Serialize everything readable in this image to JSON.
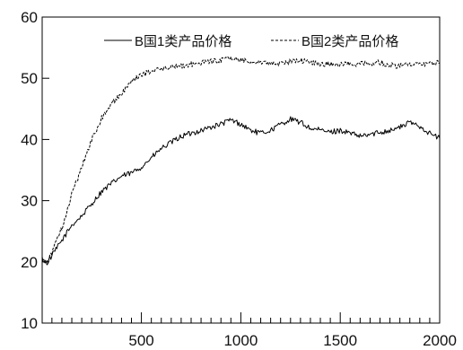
{
  "chart_data": {
    "type": "line",
    "title": "",
    "xlabel": "",
    "ylabel": "",
    "xlim": [
      1,
      2000
    ],
    "ylim": [
      10,
      60
    ],
    "x_ticks": [
      500,
      1000,
      1500,
      2000
    ],
    "x_tick_labels": [
      "500",
      "1000",
      "1500",
      "2000"
    ],
    "y_ticks": [
      10,
      20,
      30,
      40,
      50,
      60
    ],
    "y_tick_labels": [
      "10",
      "20",
      "30",
      "40",
      "50",
      "60"
    ],
    "x_minor_tick_step": 50,
    "grid": false,
    "legend_position": "top-right",
    "series": [
      {
        "name": "B国1类产品价格",
        "line_style": "solid",
        "color": "#000000",
        "x": [
          1,
          25,
          50,
          100,
          150,
          200,
          250,
          300,
          350,
          400,
          450,
          500,
          550,
          600,
          650,
          700,
          750,
          800,
          850,
          900,
          950,
          1000,
          1050,
          1100,
          1150,
          1200,
          1250,
          1300,
          1350,
          1400,
          1450,
          1500,
          1550,
          1600,
          1650,
          1700,
          1750,
          1800,
          1850,
          1900,
          1950,
          2000
        ],
        "y": [
          20.5,
          19.8,
          21.0,
          23.5,
          26.0,
          27.5,
          29.5,
          31.5,
          32.8,
          34.0,
          34.5,
          35.5,
          37.0,
          38.5,
          39.5,
          40.5,
          41.0,
          41.5,
          42.0,
          42.5,
          43.2,
          42.5,
          41.5,
          41.0,
          41.5,
          42.5,
          43.3,
          42.8,
          41.8,
          41.5,
          41.2,
          41.5,
          41.0,
          40.5,
          40.8,
          41.2,
          41.5,
          42.0,
          42.8,
          42.2,
          41.0,
          40.2
        ]
      },
      {
        "name": "B国2类产品价格",
        "line_style": "dashed",
        "color": "#000000",
        "x": [
          1,
          25,
          50,
          100,
          150,
          200,
          250,
          300,
          350,
          400,
          450,
          500,
          550,
          600,
          650,
          700,
          750,
          800,
          850,
          900,
          950,
          1000,
          1050,
          1100,
          1150,
          1200,
          1250,
          1300,
          1350,
          1400,
          1450,
          1500,
          1550,
          1600,
          1650,
          1700,
          1750,
          1800,
          1850,
          1900,
          1950,
          2000
        ],
        "y": [
          20.5,
          20.0,
          21.5,
          25.5,
          31.0,
          35.5,
          40.0,
          43.5,
          45.8,
          47.5,
          49.5,
          50.5,
          51.2,
          51.5,
          51.8,
          52.0,
          52.3,
          52.5,
          52.8,
          53.0,
          53.2,
          53.0,
          52.8,
          52.6,
          52.5,
          52.4,
          52.7,
          52.9,
          52.6,
          52.4,
          52.3,
          52.2,
          52.4,
          52.3,
          52.5,
          52.6,
          52.2,
          52.0,
          52.2,
          52.3,
          52.4,
          52.5
        ]
      }
    ]
  }
}
